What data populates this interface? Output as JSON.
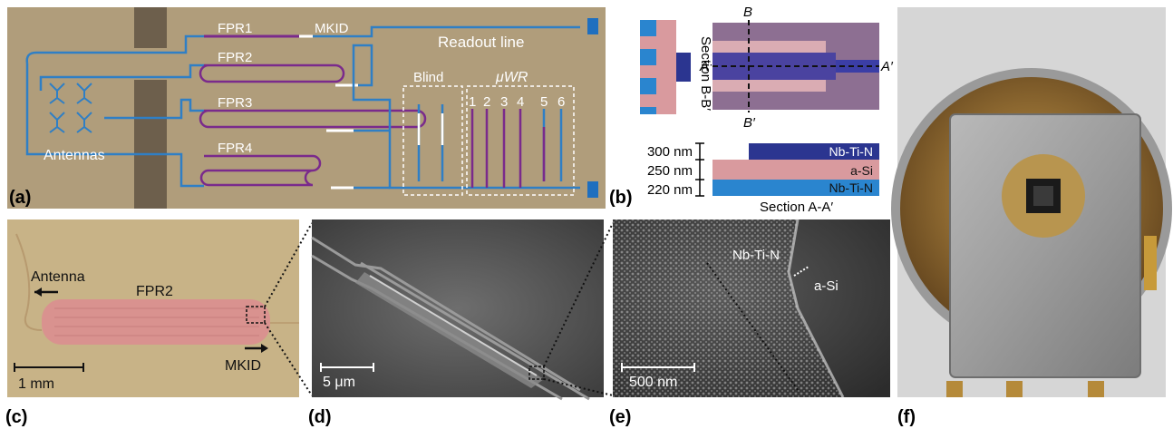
{
  "panels": {
    "a": {
      "tag": "(a)",
      "fpr1": "FPR1",
      "fpr2": "FPR2",
      "fpr3": "FPR3",
      "fpr4": "FPR4",
      "mkid": "MKID",
      "readout": "Readout line",
      "blind": "Blind",
      "uwr": "μWR",
      "antennas": "Antennas",
      "numbers": [
        "1",
        "2",
        "3",
        "4",
        "5",
        "6"
      ]
    },
    "b": {
      "tag": "(b)",
      "section_bb": "Section B-B′",
      "label_a": "A",
      "label_a_prime": "A′",
      "label_b": "B",
      "label_b_prime": "B′",
      "thickness": [
        "300 nm",
        "250 nm",
        "220 nm"
      ],
      "layers": [
        "Nb-Ti-N",
        "a-Si",
        "Nb-Ti-N"
      ],
      "section_aa": "Section A-A′"
    },
    "c": {
      "tag": "(c)",
      "antenna": "Antenna",
      "fpr2": "FPR2",
      "mkid": "MKID",
      "scale": "1 mm"
    },
    "d": {
      "tag": "(d)",
      "scale": "5 μm"
    },
    "e": {
      "tag": "(e)",
      "nbtin": "Nb-Ti-N",
      "asi": "a-Si",
      "scale": "500 nm"
    },
    "f": {
      "tag": "(f)"
    }
  },
  "colors": {
    "substrate": "#b09d7b",
    "line_blue": "#2f7fc5",
    "line_purple": "#7a2a8c",
    "pad_blue": "#1f6fbf",
    "nbtin_dark": "#2b3590",
    "asi_pink": "#d99a9e",
    "nbtin_light": "#2a85cf"
  }
}
